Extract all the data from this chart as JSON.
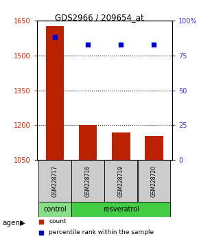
{
  "title": "GDS2966 / 209654_at",
  "samples": [
    "GSM228717",
    "GSM228718",
    "GSM228719",
    "GSM228720"
  ],
  "count_values": [
    1628,
    1201,
    1168,
    1155
  ],
  "percentile_values": [
    88,
    83,
    83,
    83
  ],
  "count_baseline": 1050,
  "ylim_left": [
    1050,
    1650
  ],
  "yticks_left": [
    1050,
    1200,
    1350,
    1500,
    1650
  ],
  "ylim_right": [
    0,
    100
  ],
  "yticks_right": [
    0,
    25,
    50,
    75,
    100
  ],
  "ytick_labels_right": [
    "0",
    "25",
    "50",
    "75",
    "100%"
  ],
  "bar_color": "#bb2200",
  "dot_color": "#0000cc",
  "groups": [
    {
      "label": "control",
      "indices": [
        0
      ],
      "color": "#88dd88"
    },
    {
      "label": "resveratrol",
      "indices": [
        1,
        2,
        3
      ],
      "color": "#44cc44"
    }
  ],
  "group_label": "agent",
  "legend_items": [
    {
      "color": "#bb2200",
      "label": "count"
    },
    {
      "color": "#0000cc",
      "label": "percentile rank within the sample"
    }
  ],
  "background_color": "#ffffff",
  "tick_label_color_left": "#cc2200",
  "tick_label_color_right": "#3333cc",
  "gridline_ticks": [
    1200,
    1350,
    1500
  ],
  "bar_width": 0.55
}
